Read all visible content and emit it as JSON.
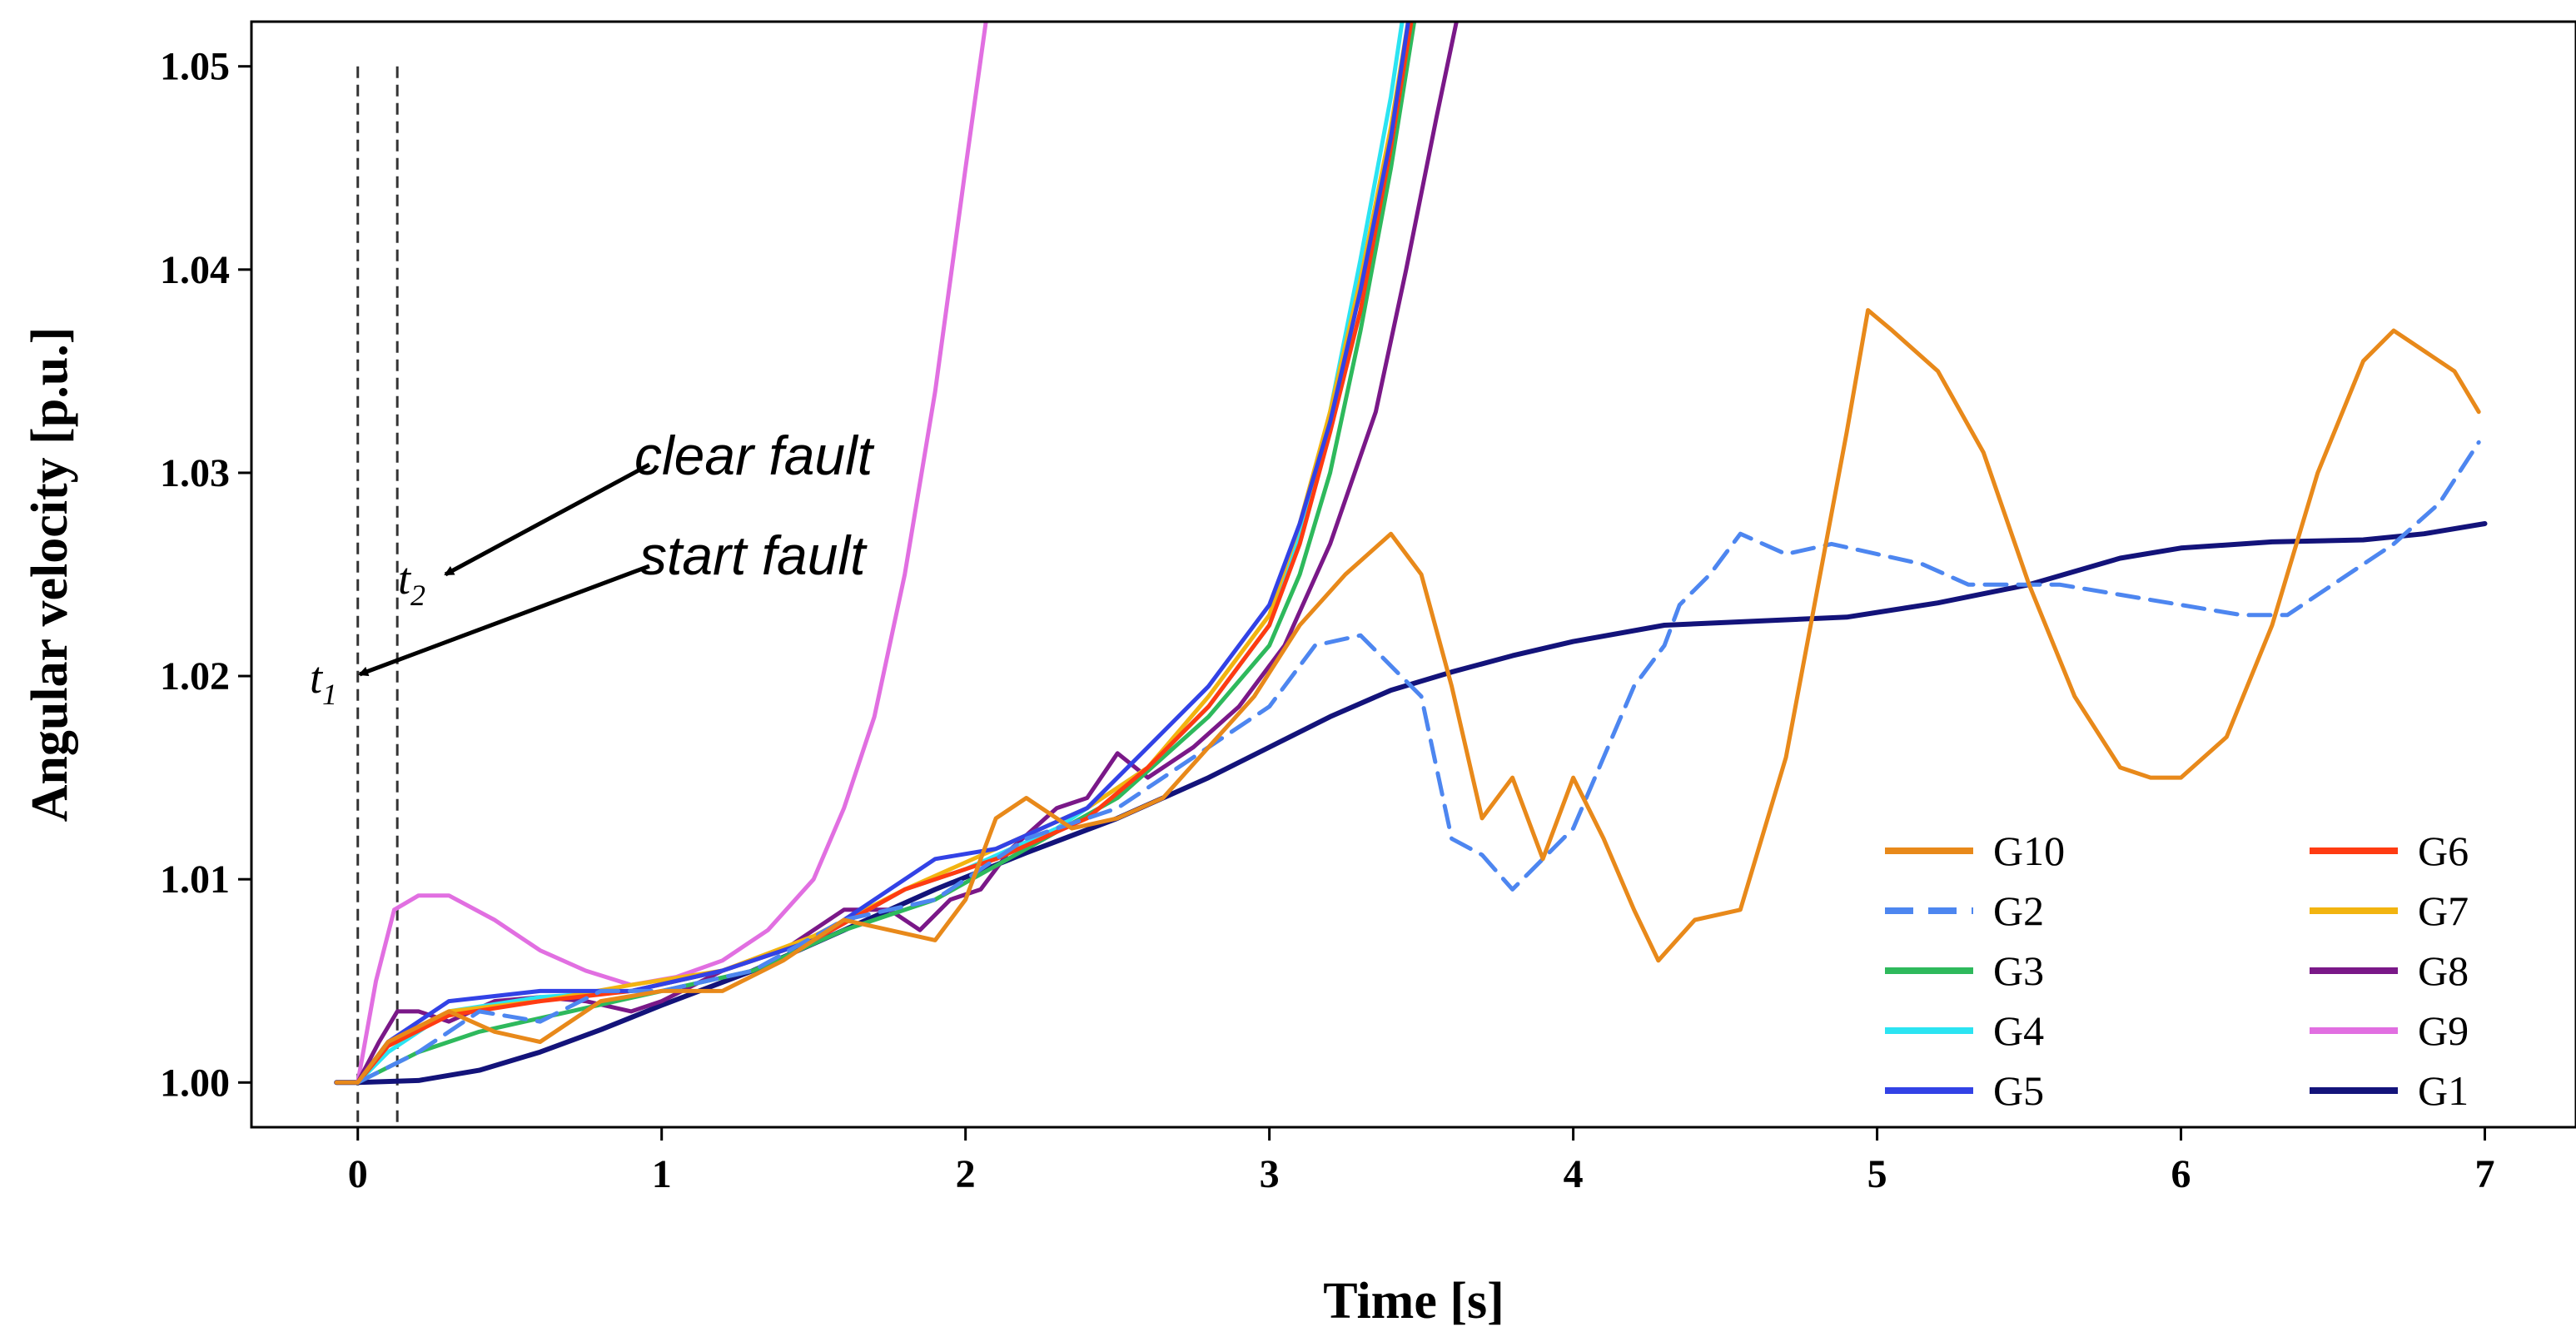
{
  "chart_data": {
    "type": "line",
    "title": "",
    "xlabel": "Time [s]",
    "ylabel": "Angular velocity [p.u.]",
    "xlim": [
      -0.35,
      7.3
    ],
    "ylim": [
      0.9978,
      1.0522
    ],
    "x_ticks": [
      0,
      1,
      2,
      3,
      4,
      5,
      6,
      7
    ],
    "x_tick_labels": [
      "0",
      "1",
      "2",
      "3",
      "4",
      "5",
      "6",
      "7"
    ],
    "y_ticks": [
      1.0,
      1.01,
      1.02,
      1.03,
      1.04,
      1.05
    ],
    "y_tick_labels": [
      "1.00",
      "1.01",
      "1.02",
      "1.03",
      "1.04",
      "1.05"
    ],
    "grid": false,
    "legend_position": "bottom-right",
    "vertical_markers": [
      0.0,
      0.13
    ],
    "annotations": [
      {
        "text": "clear fault",
        "points_to": "t2"
      },
      {
        "text": "start fault",
        "points_to": "t1"
      }
    ],
    "marker_labels": [
      {
        "base": "t",
        "sub": "1",
        "x": 0.0,
        "y": 1.02
      },
      {
        "base": "t",
        "sub": "2",
        "x": 0.13,
        "y": 1.0248
      }
    ],
    "series": [
      {
        "name": "G10",
        "color": "#E8891A",
        "dash": "solid",
        "points": [
          [
            -0.07,
            1.0
          ],
          [
            0,
            1.0
          ],
          [
            0.1,
            1.002
          ],
          [
            0.3,
            1.0035
          ],
          [
            0.45,
            1.0025
          ],
          [
            0.6,
            1.002
          ],
          [
            0.8,
            1.004
          ],
          [
            1.0,
            1.0045
          ],
          [
            1.2,
            1.0045
          ],
          [
            1.4,
            1.006
          ],
          [
            1.6,
            1.008
          ],
          [
            1.75,
            1.0075
          ],
          [
            1.9,
            1.007
          ],
          [
            2.0,
            1.009
          ],
          [
            2.1,
            1.013
          ],
          [
            2.2,
            1.014
          ],
          [
            2.35,
            1.0125
          ],
          [
            2.5,
            1.013
          ],
          [
            2.65,
            1.014
          ],
          [
            2.8,
            1.0165
          ],
          [
            2.95,
            1.019
          ],
          [
            3.1,
            1.0225
          ],
          [
            3.25,
            1.025
          ],
          [
            3.4,
            1.027
          ],
          [
            3.5,
            1.025
          ],
          [
            3.6,
            1.0195
          ],
          [
            3.7,
            1.013
          ],
          [
            3.8,
            1.015
          ],
          [
            3.9,
            1.011
          ],
          [
            4.0,
            1.015
          ],
          [
            4.1,
            1.012
          ],
          [
            4.2,
            1.0085
          ],
          [
            4.28,
            1.006
          ],
          [
            4.4,
            1.008
          ],
          [
            4.55,
            1.0085
          ],
          [
            4.7,
            1.016
          ],
          [
            4.8,
            1.024
          ],
          [
            4.9,
            1.032
          ],
          [
            4.97,
            1.038
          ],
          [
            5.05,
            1.037
          ],
          [
            5.2,
            1.035
          ],
          [
            5.35,
            1.031
          ],
          [
            5.5,
            1.0245
          ],
          [
            5.65,
            1.019
          ],
          [
            5.8,
            1.0155
          ],
          [
            5.9,
            1.015
          ],
          [
            6.0,
            1.015
          ],
          [
            6.15,
            1.017
          ],
          [
            6.3,
            1.0225
          ],
          [
            6.45,
            1.03
          ],
          [
            6.6,
            1.0355
          ],
          [
            6.7,
            1.037
          ],
          [
            6.8,
            1.036
          ],
          [
            6.9,
            1.035
          ],
          [
            6.98,
            1.033
          ]
        ]
      },
      {
        "name": "G2",
        "color": "#4D86F0",
        "dash": "dashed",
        "points": [
          [
            0,
            1.0
          ],
          [
            0.2,
            1.0015
          ],
          [
            0.4,
            1.0035
          ],
          [
            0.6,
            1.003
          ],
          [
            0.8,
            1.0045
          ],
          [
            1.0,
            1.0045
          ],
          [
            1.3,
            1.0055
          ],
          [
            1.6,
            1.008
          ],
          [
            1.9,
            1.009
          ],
          [
            2.2,
            1.012
          ],
          [
            2.5,
            1.0135
          ],
          [
            2.8,
            1.0165
          ],
          [
            3.0,
            1.0185
          ],
          [
            3.15,
            1.0215
          ],
          [
            3.3,
            1.022
          ],
          [
            3.5,
            1.019
          ],
          [
            3.6,
            1.012
          ],
          [
            3.7,
            1.0112
          ],
          [
            3.8,
            1.0095
          ],
          [
            3.9,
            1.011
          ],
          [
            4.0,
            1.0125
          ],
          [
            4.1,
            1.016
          ],
          [
            4.2,
            1.0195
          ],
          [
            4.3,
            1.0215
          ],
          [
            4.35,
            1.0235
          ],
          [
            4.45,
            1.025
          ],
          [
            4.55,
            1.027
          ],
          [
            4.7,
            1.026
          ],
          [
            4.85,
            1.0265
          ],
          [
            5.0,
            1.026
          ],
          [
            5.15,
            1.0255
          ],
          [
            5.3,
            1.0245
          ],
          [
            5.45,
            1.0245
          ],
          [
            5.6,
            1.0245
          ],
          [
            5.8,
            1.024
          ],
          [
            6.0,
            1.0235
          ],
          [
            6.2,
            1.023
          ],
          [
            6.35,
            1.023
          ],
          [
            6.5,
            1.0245
          ],
          [
            6.7,
            1.0265
          ],
          [
            6.85,
            1.0285
          ],
          [
            6.98,
            1.0315
          ]
        ]
      },
      {
        "name": "G3",
        "color": "#2EB95C",
        "dash": "solid",
        "points": [
          [
            0,
            1.0
          ],
          [
            0.2,
            1.0015
          ],
          [
            0.4,
            1.0025
          ],
          [
            0.7,
            1.0035
          ],
          [
            1.0,
            1.0045
          ],
          [
            1.3,
            1.0055
          ],
          [
            1.6,
            1.0075
          ],
          [
            1.9,
            1.009
          ],
          [
            2.2,
            1.0115
          ],
          [
            2.5,
            1.014
          ],
          [
            2.8,
            1.018
          ],
          [
            3.0,
            1.0215
          ],
          [
            3.1,
            1.025
          ],
          [
            3.2,
            1.03
          ],
          [
            3.3,
            1.037
          ],
          [
            3.4,
            1.045
          ],
          [
            3.48,
            1.0525
          ]
        ]
      },
      {
        "name": "G4",
        "color": "#2BE4F2",
        "dash": "solid",
        "points": [
          [
            0,
            1.0
          ],
          [
            0.1,
            1.0015
          ],
          [
            0.3,
            1.0035
          ],
          [
            0.6,
            1.0042
          ],
          [
            0.9,
            1.0045
          ],
          [
            1.2,
            1.0055
          ],
          [
            1.5,
            1.007
          ],
          [
            1.8,
            1.0095
          ],
          [
            2.0,
            1.0105
          ],
          [
            2.3,
            1.0125
          ],
          [
            2.6,
            1.0155
          ],
          [
            2.8,
            1.0185
          ],
          [
            3.0,
            1.0225
          ],
          [
            3.1,
            1.027
          ],
          [
            3.2,
            1.033
          ],
          [
            3.3,
            1.0405
          ],
          [
            3.4,
            1.0485
          ],
          [
            3.44,
            1.0525
          ]
        ]
      },
      {
        "name": "G5",
        "color": "#3242E6",
        "dash": "solid",
        "points": [
          [
            0,
            1.0
          ],
          [
            0.1,
            1.002
          ],
          [
            0.3,
            1.004
          ],
          [
            0.6,
            1.0045
          ],
          [
            0.9,
            1.0045
          ],
          [
            1.2,
            1.0055
          ],
          [
            1.5,
            1.007
          ],
          [
            1.75,
            1.0095
          ],
          [
            1.9,
            1.011
          ],
          [
            2.1,
            1.0115
          ],
          [
            2.4,
            1.0135
          ],
          [
            2.6,
            1.0165
          ],
          [
            2.8,
            1.0195
          ],
          [
            3.0,
            1.0235
          ],
          [
            3.1,
            1.0275
          ],
          [
            3.2,
            1.0325
          ],
          [
            3.3,
            1.039
          ],
          [
            3.4,
            1.0465
          ],
          [
            3.46,
            1.0525
          ]
        ]
      },
      {
        "name": "G6",
        "color": "#FF3B12",
        "dash": "solid",
        "points": [
          [
            0,
            1.0
          ],
          [
            0.1,
            1.0018
          ],
          [
            0.3,
            1.0033
          ],
          [
            0.6,
            1.004
          ],
          [
            0.9,
            1.0045
          ],
          [
            1.2,
            1.0055
          ],
          [
            1.5,
            1.007
          ],
          [
            1.8,
            1.0095
          ],
          [
            2.1,
            1.011
          ],
          [
            2.4,
            1.013
          ],
          [
            2.6,
            1.0155
          ],
          [
            2.8,
            1.0185
          ],
          [
            3.0,
            1.0225
          ],
          [
            3.1,
            1.0265
          ],
          [
            3.2,
            1.032
          ],
          [
            3.3,
            1.038
          ],
          [
            3.4,
            1.046
          ],
          [
            3.47,
            1.0525
          ]
        ]
      },
      {
        "name": "G7",
        "color": "#F2B410",
        "dash": "solid",
        "points": [
          [
            0,
            1.0
          ],
          [
            0.1,
            1.002
          ],
          [
            0.3,
            1.0035
          ],
          [
            0.6,
            1.004
          ],
          [
            0.9,
            1.0048
          ],
          [
            1.2,
            1.0055
          ],
          [
            1.5,
            1.0072
          ],
          [
            1.8,
            1.0095
          ],
          [
            2.1,
            1.0115
          ],
          [
            2.4,
            1.0135
          ],
          [
            2.6,
            1.0155
          ],
          [
            2.8,
            1.019
          ],
          [
            3.0,
            1.023
          ],
          [
            3.1,
            1.0275
          ],
          [
            3.2,
            1.033
          ],
          [
            3.3,
            1.0395
          ],
          [
            3.4,
            1.047
          ],
          [
            3.46,
            1.0525
          ]
        ]
      },
      {
        "name": "G8",
        "color": "#7A1888",
        "dash": "solid",
        "points": [
          [
            0,
            1.0
          ],
          [
            0.07,
            1.002
          ],
          [
            0.13,
            1.0035
          ],
          [
            0.2,
            1.0035
          ],
          [
            0.3,
            1.003
          ],
          [
            0.45,
            1.004
          ],
          [
            0.6,
            1.0042
          ],
          [
            0.75,
            1.004
          ],
          [
            0.9,
            1.0035
          ],
          [
            1.0,
            1.004
          ],
          [
            1.2,
            1.0055
          ],
          [
            1.4,
            1.0065
          ],
          [
            1.6,
            1.0085
          ],
          [
            1.75,
            1.0085
          ],
          [
            1.85,
            1.0075
          ],
          [
            1.95,
            1.009
          ],
          [
            2.05,
            1.0095
          ],
          [
            2.15,
            1.0115
          ],
          [
            2.3,
            1.0135
          ],
          [
            2.4,
            1.014
          ],
          [
            2.5,
            1.0162
          ],
          [
            2.6,
            1.015
          ],
          [
            2.75,
            1.0165
          ],
          [
            2.9,
            1.0185
          ],
          [
            3.05,
            1.0215
          ],
          [
            3.2,
            1.0265
          ],
          [
            3.35,
            1.033
          ],
          [
            3.45,
            1.04
          ],
          [
            3.55,
            1.0475
          ],
          [
            3.62,
            1.0525
          ]
        ]
      },
      {
        "name": "G9",
        "color": "#E16FE1",
        "dash": "solid",
        "points": [
          [
            0,
            1.0
          ],
          [
            0.06,
            1.005
          ],
          [
            0.12,
            1.0085
          ],
          [
            0.2,
            1.0092
          ],
          [
            0.3,
            1.0092
          ],
          [
            0.45,
            1.008
          ],
          [
            0.6,
            1.0065
          ],
          [
            0.75,
            1.0055
          ],
          [
            0.9,
            1.0048
          ],
          [
            1.05,
            1.0052
          ],
          [
            1.2,
            1.006
          ],
          [
            1.35,
            1.0075
          ],
          [
            1.5,
            1.01
          ],
          [
            1.6,
            1.0135
          ],
          [
            1.7,
            1.018
          ],
          [
            1.8,
            1.025
          ],
          [
            1.9,
            1.034
          ],
          [
            2.0,
            1.045
          ],
          [
            2.07,
            1.0525
          ]
        ]
      },
      {
        "name": "G1",
        "color": "#13137A",
        "dash": "solid",
        "points": [
          [
            -0.07,
            1.0
          ],
          [
            0,
            1.0
          ],
          [
            0.2,
            1.0001
          ],
          [
            0.4,
            1.0006
          ],
          [
            0.6,
            1.0015
          ],
          [
            0.8,
            1.0026
          ],
          [
            1.0,
            1.0038
          ],
          [
            1.3,
            1.0055
          ],
          [
            1.6,
            1.0075
          ],
          [
            1.9,
            1.0095
          ],
          [
            2.2,
            1.0113
          ],
          [
            2.5,
            1.013
          ],
          [
            2.8,
            1.015
          ],
          [
            3.0,
            1.0165
          ],
          [
            3.2,
            1.018
          ],
          [
            3.4,
            1.0193
          ],
          [
            3.6,
            1.0202
          ],
          [
            3.8,
            1.021
          ],
          [
            4.0,
            1.0217
          ],
          [
            4.3,
            1.0225
          ],
          [
            4.6,
            1.0227
          ],
          [
            4.9,
            1.0229
          ],
          [
            5.2,
            1.0236
          ],
          [
            5.5,
            1.0245
          ],
          [
            5.8,
            1.0258
          ],
          [
            6.0,
            1.0263
          ],
          [
            6.3,
            1.0266
          ],
          [
            6.6,
            1.0267
          ],
          [
            6.8,
            1.027
          ],
          [
            7.0,
            1.0275
          ]
        ]
      }
    ],
    "legend_columns": [
      [
        "G10",
        "G2",
        "G3",
        "G4",
        "G5"
      ],
      [
        "G6",
        "G7",
        "G8",
        "G9",
        "G1"
      ]
    ]
  }
}
